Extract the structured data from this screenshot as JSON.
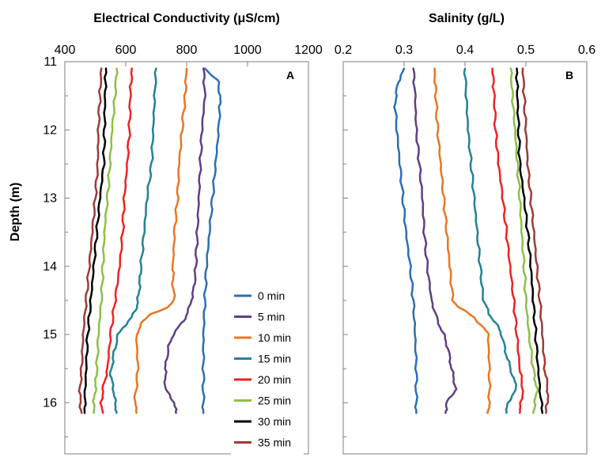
{
  "yaxis": {
    "label": "Depth (m)",
    "ticks": [
      "11",
      "12",
      "13",
      "14",
      "15",
      "16"
    ],
    "ylim": [
      11,
      16.75
    ]
  },
  "legend": {
    "items": [
      {
        "label": "0 min",
        "color": "#2E6DB4"
      },
      {
        "label": "5 min",
        "color": "#5E3E86"
      },
      {
        "label": "10 min",
        "color": "#E87722"
      },
      {
        "label": "15 min",
        "color": "#238197"
      },
      {
        "label": "20 min",
        "color": "#EE2222"
      },
      {
        "label": "25 min",
        "color": "#8DBF45"
      },
      {
        "label": "30 min",
        "color": "#000000"
      },
      {
        "label": "35 min",
        "color": "#9E3A36"
      }
    ]
  },
  "chart_data": [
    {
      "type": "line",
      "panel": "A",
      "title": "Electrical Conductivity (μS/cm)",
      "xticks": [
        "400",
        "600",
        "800",
        "1000",
        "1200"
      ],
      "xlim": [
        400,
        1200
      ],
      "ylabel": "Depth (m)",
      "ylim": [
        11,
        16.75
      ],
      "series": [
        {
          "name": "0 min",
          "depth": [
            11.1,
            11.3,
            11.6,
            12.0,
            12.5,
            13.0,
            13.5,
            14.0,
            14.5,
            15.0,
            15.5,
            16.0,
            16.15
          ],
          "values": [
            860,
            905,
            910,
            905,
            895,
            885,
            875,
            865,
            860,
            855,
            855,
            855,
            855
          ]
        },
        {
          "name": "5 min",
          "depth": [
            11.1,
            11.5,
            12.0,
            12.5,
            13.0,
            13.5,
            14.0,
            14.3,
            14.6,
            14.8,
            15.0,
            15.2,
            15.5,
            15.8,
            16.0,
            16.15
          ],
          "values": [
            855,
            860,
            850,
            845,
            840,
            835,
            830,
            825,
            810,
            790,
            755,
            740,
            730,
            730,
            760,
            765
          ]
        },
        {
          "name": "10 min",
          "depth": [
            11.1,
            11.5,
            12.0,
            12.5,
            13.0,
            13.5,
            14.0,
            14.3,
            14.5,
            14.6,
            14.7,
            14.85,
            15.0,
            15.5,
            16.0,
            16.15
          ],
          "values": [
            800,
            795,
            785,
            775,
            770,
            760,
            755,
            755,
            760,
            740,
            680,
            650,
            635,
            640,
            630,
            635
          ]
        },
        {
          "name": "15 min",
          "depth": [
            11.1,
            11.5,
            12.0,
            12.5,
            13.0,
            13.5,
            14.0,
            14.3,
            14.5,
            14.6,
            14.75,
            14.9,
            15.0,
            15.3,
            15.6,
            15.8,
            16.0,
            16.15
          ],
          "values": [
            700,
            695,
            690,
            685,
            670,
            660,
            650,
            645,
            640,
            635,
            620,
            590,
            575,
            560,
            550,
            560,
            565,
            570
          ]
        },
        {
          "name": "20 min",
          "depth": [
            11.1,
            11.5,
            12.0,
            12.5,
            13.0,
            13.5,
            14.0,
            14.5,
            15.0,
            15.5,
            15.8,
            16.0,
            16.15
          ],
          "values": [
            620,
            615,
            612,
            605,
            595,
            590,
            580,
            565,
            550,
            540,
            525,
            520,
            525
          ]
        },
        {
          "name": "25 min",
          "depth": [
            11.1,
            11.5,
            12.0,
            12.5,
            13.0,
            13.5,
            14.0,
            14.5,
            15.0,
            15.5,
            15.8,
            16.0,
            16.15
          ],
          "values": [
            570,
            565,
            555,
            548,
            540,
            530,
            525,
            520,
            510,
            505,
            500,
            495,
            495
          ]
        },
        {
          "name": "30 min",
          "depth": [
            11.1,
            11.5,
            12.0,
            12.5,
            13.0,
            13.5,
            14.0,
            14.5,
            15.0,
            15.5,
            16.0,
            16.15
          ],
          "values": [
            535,
            532,
            530,
            528,
            515,
            505,
            495,
            485,
            475,
            470,
            465,
            465
          ]
        },
        {
          "name": "35 min",
          "depth": [
            11.1,
            11.5,
            12.0,
            12.5,
            13.0,
            13.5,
            14.0,
            14.5,
            15.0,
            15.5,
            15.8,
            16.0,
            16.15
          ],
          "values": [
            520,
            515,
            510,
            508,
            500,
            490,
            480,
            470,
            460,
            455,
            450,
            450,
            455
          ]
        }
      ]
    },
    {
      "type": "line",
      "panel": "B",
      "title": "Salinity (g/L)",
      "xticks": [
        "0.2",
        "0.3",
        "0.4",
        "0.5",
        "0.6"
      ],
      "xlim": [
        0.2,
        0.6
      ],
      "ylabel": "Depth (m)",
      "ylim": [
        11,
        16.75
      ],
      "series": [
        {
          "name": "0 min",
          "depth": [
            11.1,
            11.3,
            11.6,
            12.0,
            12.5,
            13.0,
            13.5,
            14.0,
            14.5,
            15.0,
            15.5,
            16.0,
            16.15
          ],
          "values": [
            0.3,
            0.29,
            0.285,
            0.288,
            0.293,
            0.298,
            0.303,
            0.31,
            0.315,
            0.318,
            0.32,
            0.32,
            0.32
          ]
        },
        {
          "name": "5 min",
          "depth": [
            11.1,
            11.5,
            12.0,
            12.5,
            13.0,
            13.5,
            14.0,
            14.5,
            14.8,
            15.0,
            15.2,
            15.5,
            15.8,
            16.0,
            16.15
          ],
          "values": [
            0.315,
            0.318,
            0.32,
            0.325,
            0.33,
            0.333,
            0.338,
            0.345,
            0.355,
            0.365,
            0.372,
            0.378,
            0.385,
            0.37,
            0.368
          ]
        },
        {
          "name": "10 min",
          "depth": [
            11.1,
            11.5,
            12.0,
            12.5,
            13.0,
            13.5,
            14.0,
            14.5,
            14.6,
            14.75,
            14.9,
            15.0,
            15.5,
            16.0,
            16.15
          ],
          "values": [
            0.35,
            0.352,
            0.355,
            0.36,
            0.365,
            0.37,
            0.375,
            0.38,
            0.39,
            0.415,
            0.43,
            0.438,
            0.44,
            0.44,
            0.437
          ]
        },
        {
          "name": "15 min",
          "depth": [
            11.1,
            11.5,
            12.0,
            12.5,
            13.0,
            13.5,
            14.0,
            14.5,
            14.7,
            14.9,
            15.0,
            15.3,
            15.6,
            15.8,
            16.0,
            16.15
          ],
          "values": [
            0.4,
            0.402,
            0.405,
            0.41,
            0.415,
            0.42,
            0.425,
            0.43,
            0.44,
            0.455,
            0.46,
            0.468,
            0.478,
            0.485,
            0.47,
            0.468
          ]
        },
        {
          "name": "20 min",
          "depth": [
            11.1,
            11.5,
            12.0,
            12.5,
            13.0,
            13.5,
            14.0,
            14.5,
            15.0,
            15.5,
            15.8,
            16.0,
            16.15
          ],
          "values": [
            0.445,
            0.448,
            0.45,
            0.455,
            0.462,
            0.468,
            0.474,
            0.48,
            0.485,
            0.49,
            0.495,
            0.492,
            0.49
          ]
        },
        {
          "name": "25 min",
          "depth": [
            11.1,
            11.5,
            12.0,
            12.5,
            13.0,
            13.5,
            14.0,
            14.5,
            15.0,
            15.5,
            15.8,
            16.0,
            16.15
          ],
          "values": [
            0.475,
            0.478,
            0.482,
            0.486,
            0.49,
            0.493,
            0.497,
            0.5,
            0.505,
            0.512,
            0.518,
            0.515,
            0.512
          ]
        },
        {
          "name": "30 min",
          "depth": [
            11.1,
            11.5,
            12.0,
            12.5,
            13.0,
            13.5,
            14.0,
            14.5,
            15.0,
            15.5,
            16.0,
            16.15
          ],
          "values": [
            0.485,
            0.486,
            0.488,
            0.49,
            0.497,
            0.503,
            0.508,
            0.512,
            0.516,
            0.52,
            0.525,
            0.527
          ]
        },
        {
          "name": "35 min",
          "depth": [
            11.1,
            11.5,
            12.0,
            12.5,
            13.0,
            13.5,
            14.0,
            14.5,
            15.0,
            15.5,
            15.8,
            16.0,
            16.15
          ],
          "values": [
            0.495,
            0.497,
            0.5,
            0.503,
            0.508,
            0.513,
            0.518,
            0.523,
            0.527,
            0.531,
            0.536,
            0.535,
            0.533
          ]
        }
      ]
    }
  ]
}
